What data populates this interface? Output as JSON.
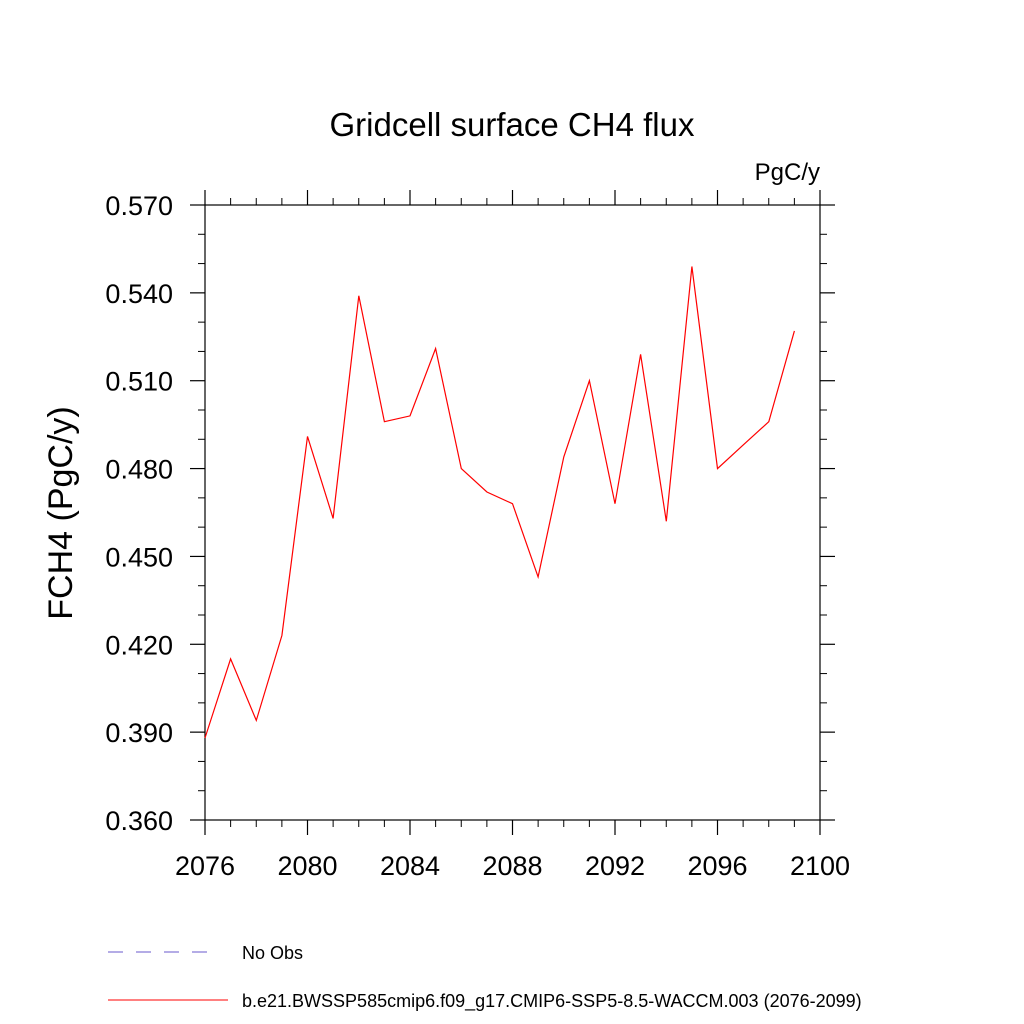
{
  "chart_data": {
    "type": "line",
    "title": "Gridcell surface CH4 flux",
    "units_label": "PgC/y",
    "xlabel": "",
    "ylabel": "FCH4  (PgC/y)",
    "xlim": [
      2076,
      2100
    ],
    "ylim": [
      0.36,
      0.57
    ],
    "x_ticks": [
      "2076",
      "2080",
      "2084",
      "2088",
      "2092",
      "2096",
      "2100"
    ],
    "y_ticks": [
      "0.360",
      "0.390",
      "0.420",
      "0.450",
      "0.480",
      "0.510",
      "0.540",
      "0.570"
    ],
    "grid": false,
    "legend_position": "bottom",
    "series": [
      {
        "name": "b.e21.BWSSP585cmip6.f09_g17.CMIP6-SSP5-8.5-WACCM.003 (2076-2099)",
        "color": "#ff0000",
        "style": "solid",
        "x": [
          2076,
          2077,
          2078,
          2079,
          2080,
          2081,
          2082,
          2083,
          2084,
          2085,
          2086,
          2087,
          2088,
          2089,
          2090,
          2091,
          2092,
          2093,
          2094,
          2095,
          2096,
          2097,
          2098,
          2099
        ],
        "y": [
          0.388,
          0.415,
          0.394,
          0.423,
          0.491,
          0.463,
          0.539,
          0.496,
          0.498,
          0.521,
          0.48,
          0.472,
          0.468,
          0.443,
          0.484,
          0.51,
          0.468,
          0.519,
          0.462,
          0.549,
          0.48,
          0.488,
          0.496,
          0.527
        ]
      }
    ],
    "legend": [
      {
        "label": "No Obs",
        "color": "#6a5acd",
        "style": "dashed"
      },
      {
        "label": "b.e21.BWSSP585cmip6.f09_g17.CMIP6-SSP5-8.5-WACCM.003 (2076-2099)",
        "color": "#ff0000",
        "style": "solid"
      }
    ]
  }
}
